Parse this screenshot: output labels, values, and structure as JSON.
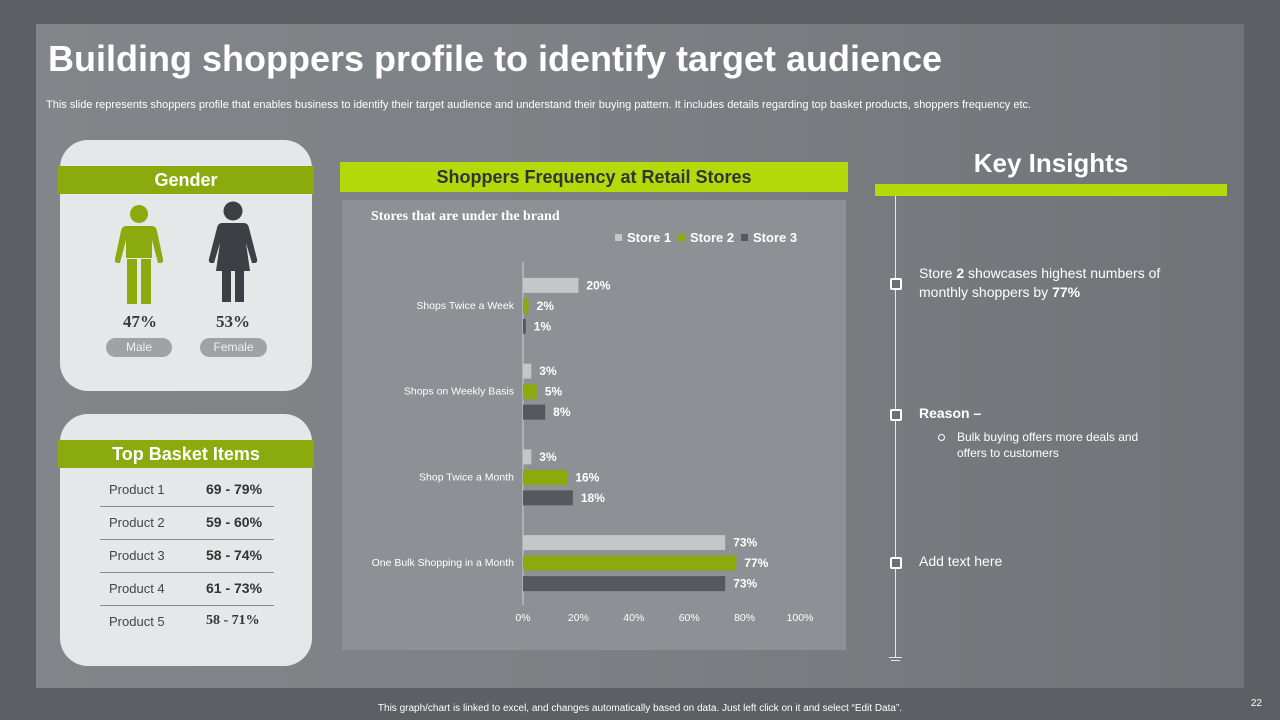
{
  "slide": {
    "title": "Building shoppers profile to identify target audience",
    "subtitle": "This slide represents shoppers profile that enables business to identify their target audience and understand their buying pattern. It includes details regarding top basket products, shoppers frequency etc.",
    "footer": "This graph/chart is linked to excel, and changes automatically based on data. Just left click on it and select “Edit Data”.",
    "page_number": "22"
  },
  "gender": {
    "title": "Gender",
    "male": {
      "percent": "47%",
      "label": "Male",
      "icon": "male-person-icon",
      "color": "#8aaa0e"
    },
    "female": {
      "percent": "53%",
      "label": "Female",
      "icon": "female-person-icon",
      "color": "#3c3f44"
    }
  },
  "basket": {
    "title": "Top Basket Items",
    "items": [
      {
        "product": "Product 1",
        "range": "69 - 79%"
      },
      {
        "product": "Product 2",
        "range": "59 - 60%"
      },
      {
        "product": "Product 3",
        "range": "58 - 74%"
      },
      {
        "product": "Product 4",
        "range": "61 - 73%"
      },
      {
        "product": "Product 5",
        "range": "58 - 71%"
      }
    ]
  },
  "chart_header": "Shoppers Frequency at Retail Stores",
  "chart_data": {
    "type": "bar",
    "orientation": "horizontal",
    "title": "Stores that are under the brand",
    "categories": [
      "Shops Twice a Week",
      "Shops on Weekly Basis",
      "Shop Twice a Month",
      "One Bulk Shopping in a Month"
    ],
    "series": [
      {
        "name": "Store 1",
        "values": [
          20,
          3,
          3,
          73
        ],
        "color": "#c4c6c8"
      },
      {
        "name": "Store 2",
        "values": [
          2,
          5,
          16,
          77
        ],
        "color": "#8aaa0e"
      },
      {
        "name": "Store 3",
        "values": [
          1,
          8,
          18,
          73
        ],
        "color": "#55585c"
      }
    ],
    "value_labels": [
      [
        "20%",
        "3%",
        "3%",
        "73%"
      ],
      [
        "2%",
        "5%",
        "16%",
        "77%"
      ],
      [
        "1%",
        "8%",
        "18%",
        "73%"
      ]
    ],
    "xlim": [
      0,
      100
    ],
    "x_ticks": [
      "0%",
      "20%",
      "40%",
      "60%",
      "80%",
      "100%"
    ],
    "legend_position": "top-right",
    "grid": false
  },
  "insights": {
    "title": "Key Insights",
    "item1_pre": "Store ",
    "item1_bold": "2",
    "item1_mid": " showcases highest numbers of monthly shoppers by ",
    "item1_pct": "77%",
    "reason_title": "Reason –",
    "reason_bullet": "Bulk buying offers more deals and offers to customers",
    "item3": "Add text here"
  }
}
